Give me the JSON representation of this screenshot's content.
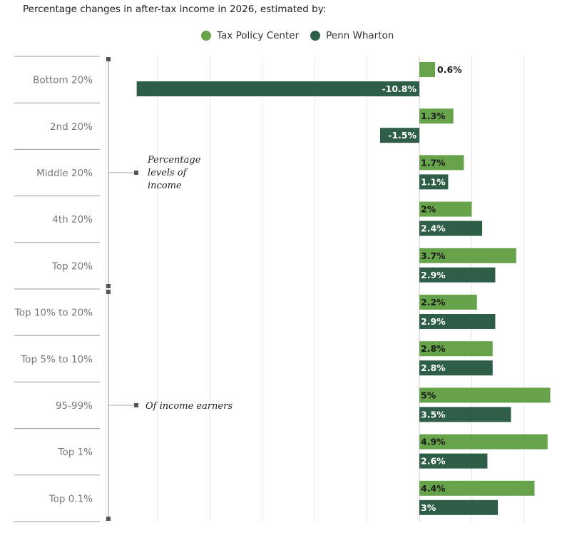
{
  "title": "Percentage changes in after-tax income in 2026, estimated by:",
  "colors": {
    "tpc": "#66a34a",
    "pw": "#2e5e48",
    "grid": "#e6e6e6",
    "axis": "#b8b8b8",
    "bracket": "#555555"
  },
  "annotations": {
    "group1": [
      "Percentage",
      "levels of",
      "income"
    ],
    "group2": "Of income earners"
  },
  "chart_data": {
    "type": "bar",
    "orientation": "horizontal",
    "title": "Percentage changes in after-tax income in 2026, estimated by:",
    "categories": [
      "Bottom 20%",
      "2nd 20%",
      "Middle 20%",
      "4th 20%",
      "Top 20%",
      "Top 10% to 20%",
      "Top 5% to 10%",
      "95-99%",
      "Top 1%",
      "Top 0.1%"
    ],
    "series": [
      {
        "name": "Tax Policy Center",
        "values": [
          0.6,
          1.3,
          1.7,
          2,
          3.7,
          2.2,
          2.8,
          5,
          4.9,
          4.4
        ],
        "labels": [
          "0.6%",
          "1.3%",
          "1.7%",
          "2%",
          "3.7%",
          "2.2%",
          "2.8%",
          "5%",
          "4.9%",
          "4.4%"
        ]
      },
      {
        "name": "Penn Wharton",
        "values": [
          -10.8,
          -1.5,
          1.1,
          2.4,
          2.9,
          2.9,
          2.8,
          3.5,
          2.6,
          3
        ],
        "labels": [
          "-10.8%",
          "-1.5%",
          "1.1%",
          "2.4%",
          "2.9%",
          "2.9%",
          "2.8%",
          "3.5%",
          "2.6%",
          "3%"
        ]
      }
    ],
    "xlim": [
      -12,
      5.5
    ],
    "grid": true,
    "legend_position": "top"
  }
}
